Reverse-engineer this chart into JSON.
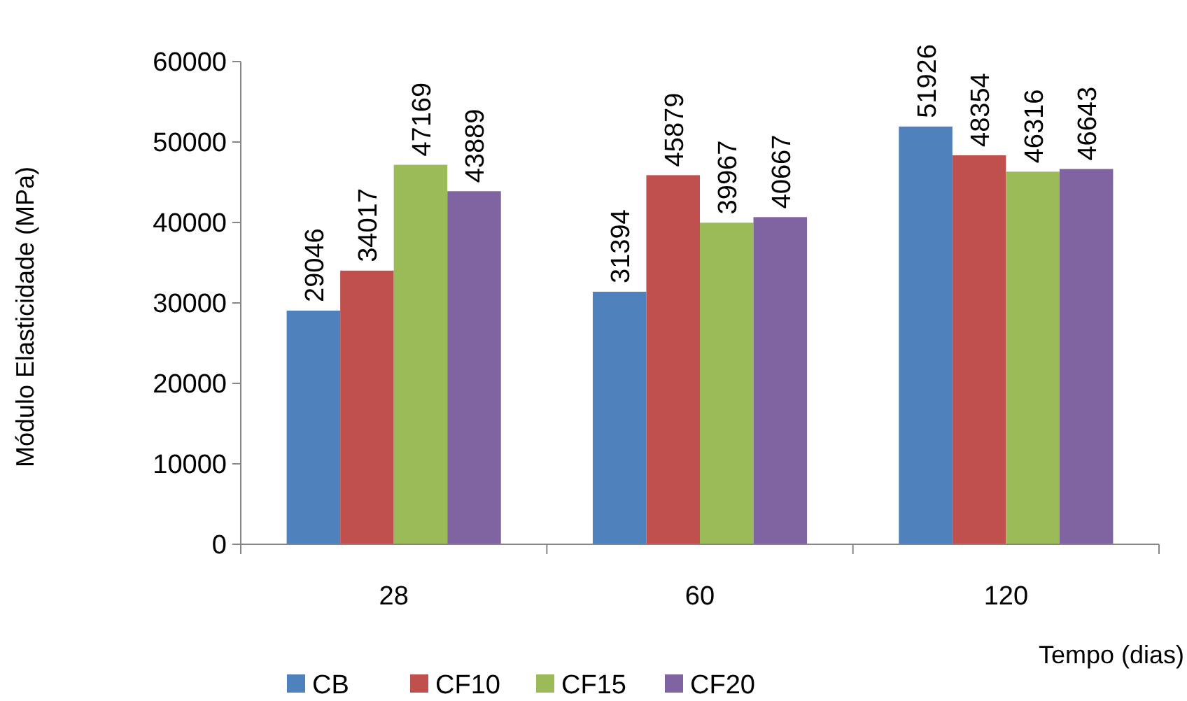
{
  "chart_data": {
    "type": "bar",
    "xlabel": "Tempo (dias)",
    "ylabel": "Módulo Elasticidade (MPa)",
    "categories": [
      "28",
      "60",
      "120"
    ],
    "series": [
      {
        "name": "CB",
        "color": "#4f81bd",
        "values": [
          29046,
          31394,
          51926
        ]
      },
      {
        "name": "CF10",
        "color": "#c0504d",
        "values": [
          34017,
          45879,
          48354
        ]
      },
      {
        "name": "CF15",
        "color": "#9bbb59",
        "values": [
          47169,
          39967,
          46316
        ]
      },
      {
        "name": "CF20",
        "color": "#8064a2",
        "values": [
          43889,
          40667,
          46643
        ]
      }
    ],
    "ylim": [
      0,
      60000
    ],
    "yticks": [
      0,
      10000,
      20000,
      30000,
      40000,
      50000,
      60000
    ],
    "data_labels": true,
    "legend": "bottom",
    "grid": false
  }
}
